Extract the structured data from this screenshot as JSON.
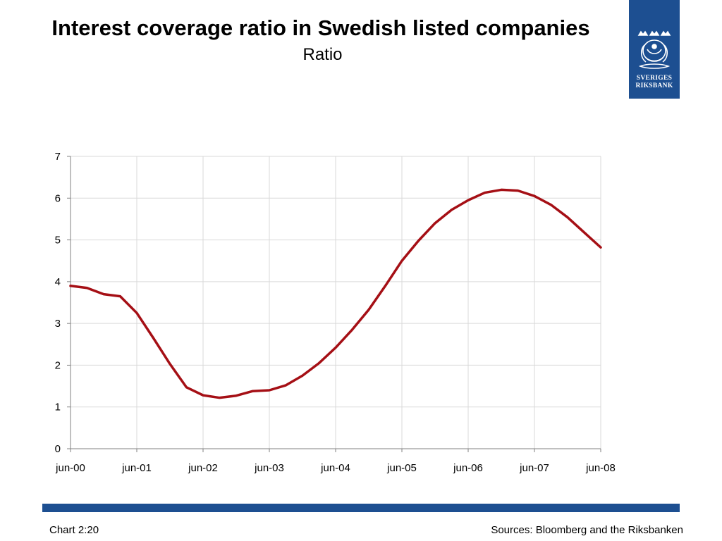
{
  "header": {
    "title": "Interest coverage ratio in Swedish listed companies",
    "subtitle": "Ratio"
  },
  "logo": {
    "line1": "SVERIGES",
    "line2": "RIKSBANK",
    "icon": "riksbank-crest-icon"
  },
  "footer": {
    "chart_id": "Chart 2:20",
    "sources": "Sources: Bloomberg and the Riksbanken"
  },
  "colors": {
    "brand_blue": "#1d4f91",
    "line": "#a50f15",
    "grid": "#d9d9d9"
  },
  "chart_data": {
    "type": "line",
    "title": "Interest coverage ratio in Swedish listed companies",
    "subtitle": "Ratio",
    "xlabel": "",
    "ylabel": "",
    "ylim": [
      0,
      7
    ],
    "yticks": [
      0,
      1,
      2,
      3,
      4,
      5,
      6,
      7
    ],
    "xticks": [
      "jun-00",
      "jun-01",
      "jun-02",
      "jun-03",
      "jun-04",
      "jun-05",
      "jun-06",
      "jun-07",
      "jun-08"
    ],
    "grid": true,
    "x": [
      "jun-00",
      "sep-00",
      "dec-00",
      "mar-01",
      "jun-01",
      "sep-01",
      "dec-01",
      "mar-02",
      "jun-02",
      "sep-02",
      "dec-02",
      "mar-03",
      "jun-03",
      "sep-03",
      "dec-03",
      "mar-04",
      "jun-04",
      "sep-04",
      "dec-04",
      "mar-05",
      "jun-05",
      "sep-05",
      "dec-05",
      "mar-06",
      "jun-06",
      "sep-06",
      "dec-06",
      "mar-07",
      "jun-07",
      "sep-07",
      "dec-07",
      "mar-08",
      "jun-08"
    ],
    "series": [
      {
        "values": [
          3.9,
          3.85,
          3.7,
          3.65,
          3.25,
          2.65,
          2.03,
          1.47,
          1.28,
          1.22,
          1.27,
          1.38,
          1.4,
          1.52,
          1.75,
          2.05,
          2.42,
          2.85,
          3.33,
          3.9,
          4.5,
          4.98,
          5.4,
          5.72,
          5.95,
          6.13,
          6.2,
          6.18,
          6.05,
          5.84,
          5.54,
          5.18,
          4.82
        ]
      }
    ]
  }
}
